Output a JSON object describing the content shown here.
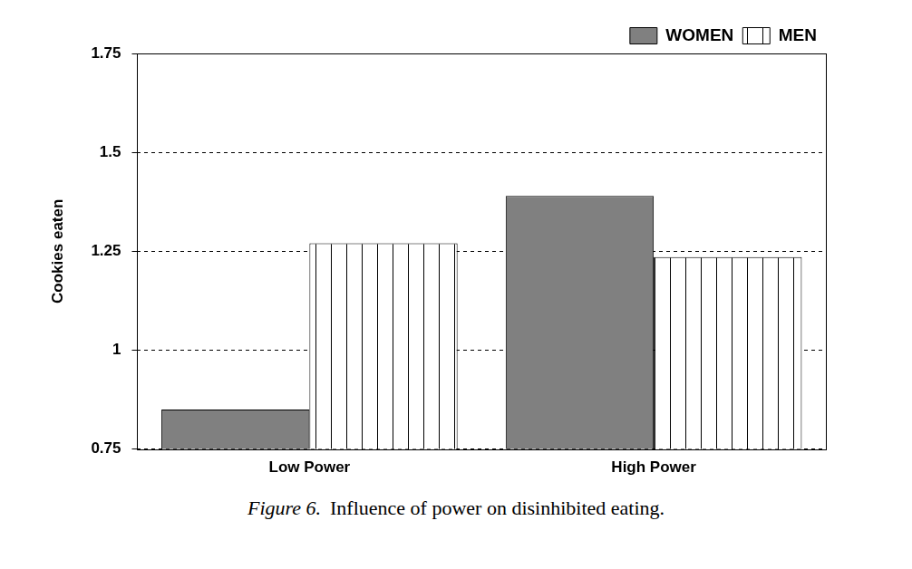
{
  "chart_data": {
    "type": "bar",
    "categories": [
      "Low Power",
      "High Power"
    ],
    "series": [
      {
        "name": "WOMEN",
        "color": "#808080",
        "values": [
          0.85,
          1.39
        ]
      },
      {
        "name": "MEN",
        "color": "#ffffff",
        "values": [
          1.27,
          1.235
        ]
      }
    ],
    "y_label": "Cookies eaten",
    "ylim": [
      0.75,
      1.75
    ],
    "yticks": [
      0.75,
      1,
      1.25,
      1.5,
      1.75
    ],
    "grid": true,
    "legend": "top-right",
    "figure_label": "Figure 6.",
    "caption": "Influence of power on disinhibited eating."
  }
}
